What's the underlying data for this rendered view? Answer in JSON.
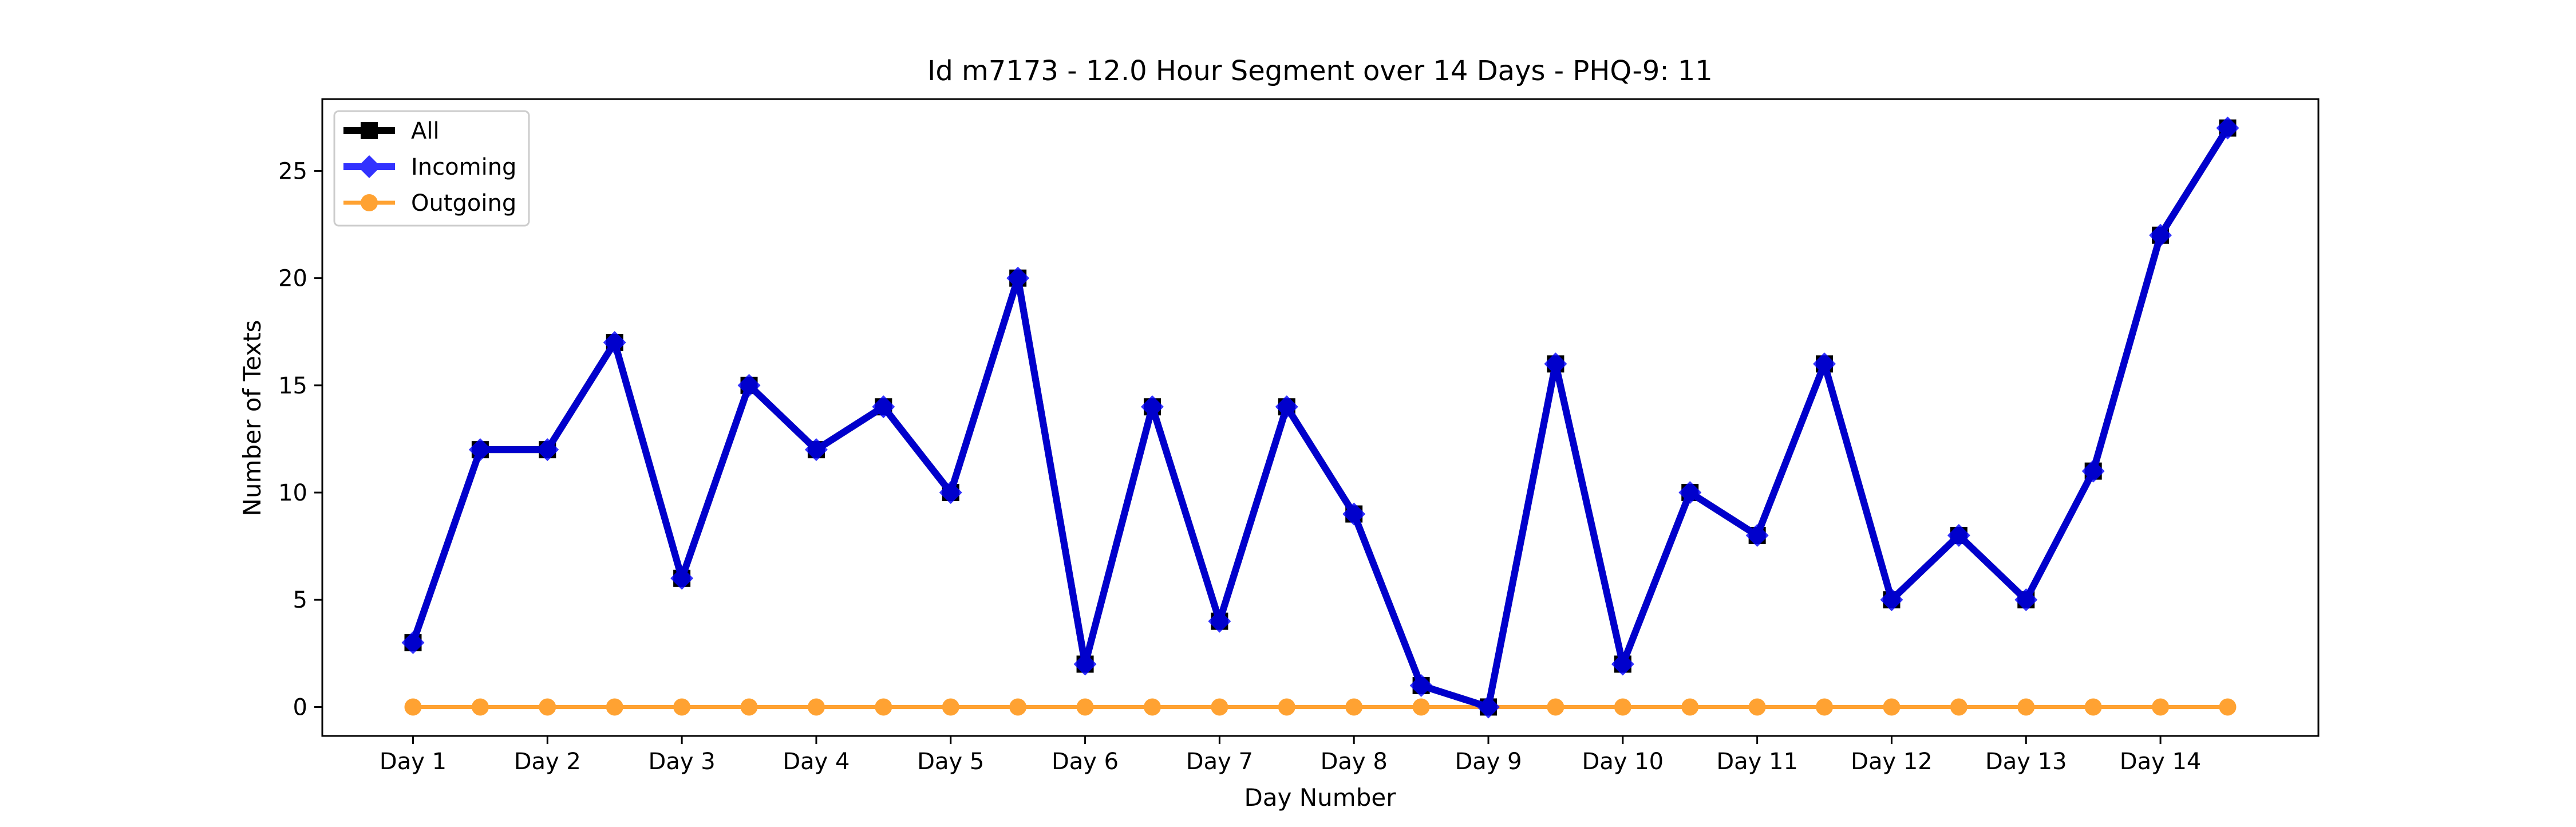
{
  "chart_data": {
    "type": "line",
    "title": "Id m7173 - 12.0 Hour Segment over 14 Days - PHQ-9: 11",
    "xlabel": "Day Number",
    "ylabel": "Number of Texts",
    "x": [
      0,
      1,
      2,
      3,
      4,
      5,
      6,
      7,
      8,
      9,
      10,
      11,
      12,
      13,
      14,
      15,
      16,
      17,
      18,
      19,
      20,
      21,
      22,
      23,
      24,
      25,
      26,
      27
    ],
    "xticks": [
      0,
      2,
      4,
      6,
      8,
      10,
      12,
      14,
      16,
      18,
      20,
      22,
      24,
      26
    ],
    "xtick_labels": [
      "Day 1",
      "Day 2",
      "Day 3",
      "Day 4",
      "Day 5",
      "Day 6",
      "Day 7",
      "Day 8",
      "Day 9",
      "Day 10",
      "Day 11",
      "Day 12",
      "Day 13",
      "Day 14"
    ],
    "yticks": [
      0,
      5,
      10,
      15,
      20,
      25
    ],
    "ylim": [
      -1.35,
      28.35
    ],
    "xlim": [
      -1.35,
      28.35
    ],
    "legend_position": "upper-left",
    "grid": false,
    "series": [
      {
        "name": "All",
        "color": "#000000",
        "marker": "square",
        "values": [
          3,
          12,
          12,
          17,
          6,
          15,
          12,
          14,
          10,
          20,
          2,
          14,
          4,
          14,
          9,
          1,
          0,
          16,
          2,
          10,
          8,
          16,
          5,
          8,
          5,
          11,
          22,
          27
        ]
      },
      {
        "name": "Incoming",
        "color": "#0000ff",
        "marker": "diamond",
        "values": [
          3,
          12,
          12,
          17,
          6,
          15,
          12,
          14,
          10,
          20,
          2,
          14,
          4,
          14,
          9,
          1,
          0,
          16,
          2,
          10,
          8,
          16,
          5,
          8,
          5,
          11,
          22,
          27
        ]
      },
      {
        "name": "Outgoing",
        "color": "#ff8c00",
        "marker": "circle",
        "values": [
          0,
          0,
          0,
          0,
          0,
          0,
          0,
          0,
          0,
          0,
          0,
          0,
          0,
          0,
          0,
          0,
          0,
          0,
          0,
          0,
          0,
          0,
          0,
          0,
          0,
          0,
          0,
          0
        ]
      }
    ]
  }
}
